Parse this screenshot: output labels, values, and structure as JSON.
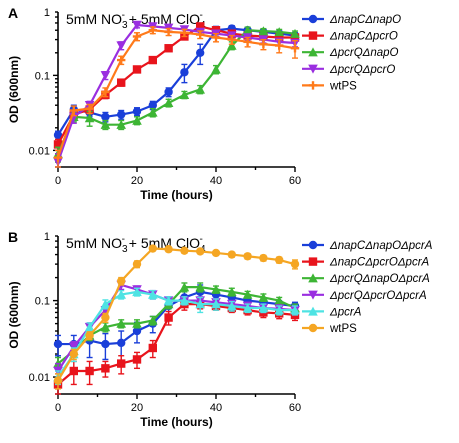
{
  "chart_data": [
    {
      "type": "line",
      "panel_label": "A",
      "annotation": "5mM NO3- + 5mM ClO4-",
      "xlabel": "Time (hours)",
      "ylabel": "OD (600nm)",
      "xlim": [
        0,
        60
      ],
      "ylim": [
        0.006,
        0.7
      ],
      "yscale": "log",
      "x_ticks": [
        "0",
        "20",
        "40",
        "60"
      ],
      "y_ticks": [
        "0.01",
        "0.1",
        "1"
      ],
      "legend_position": "right",
      "series": [
        {
          "name": "ΔnapCΔnapO",
          "color": "#1a3fd9",
          "marker": "circle",
          "x": [
            0,
            4,
            8,
            12,
            16,
            20,
            24,
            28,
            32,
            36,
            40,
            44,
            48,
            52,
            56,
            60
          ],
          "y": [
            0.016,
            0.035,
            0.032,
            0.028,
            0.03,
            0.033,
            0.04,
            0.06,
            0.11,
            0.2,
            0.4,
            0.42,
            0.4,
            0.38,
            0.36,
            0.34
          ],
          "err": [
            0.002,
            0.005,
            0.004,
            0.004,
            0.004,
            0.004,
            0.005,
            0.008,
            0.03,
            0.06,
            0.05,
            0.04,
            0.03,
            0.03,
            0.03,
            0.03
          ]
        },
        {
          "name": "ΔnapCΔpcrO",
          "color": "#e8141c",
          "marker": "square",
          "x": [
            0,
            4,
            8,
            12,
            16,
            20,
            24,
            28,
            32,
            36,
            40,
            44,
            48,
            52,
            56,
            60
          ],
          "y": [
            0.012,
            0.03,
            0.035,
            0.055,
            0.08,
            0.12,
            0.16,
            0.23,
            0.33,
            0.45,
            0.4,
            0.36,
            0.34,
            0.33,
            0.32,
            0.32
          ],
          "err": [
            0.002,
            0.004,
            0.004,
            0.006,
            0.008,
            0.01,
            0.015,
            0.02,
            0.03,
            0.04,
            0.03,
            0.03,
            0.03,
            0.03,
            0.03,
            0.03
          ]
        },
        {
          "name": "ΔpcrQΔnapO",
          "color": "#3db534",
          "marker": "triangle",
          "x": [
            0,
            4,
            8,
            12,
            16,
            20,
            24,
            28,
            32,
            36,
            40,
            44,
            48,
            52,
            56,
            60
          ],
          "y": [
            0.009,
            0.028,
            0.027,
            0.022,
            0.022,
            0.025,
            0.032,
            0.043,
            0.055,
            0.065,
            0.12,
            0.25,
            0.4,
            0.39,
            0.38,
            0.36
          ],
          "err": [
            0.002,
            0.004,
            0.006,
            0.003,
            0.003,
            0.003,
            0.004,
            0.005,
            0.006,
            0.008,
            0.015,
            0.03,
            0.04,
            0.03,
            0.03,
            0.03
          ]
        },
        {
          "name": "ΔpcrQΔpcrO",
          "color": "#9a2ee0",
          "marker": "triangle-down",
          "x": [
            0,
            4,
            8,
            12,
            16,
            20,
            24,
            28,
            32,
            36,
            40,
            44,
            48,
            52,
            56,
            60
          ],
          "y": [
            0.007,
            0.028,
            0.04,
            0.1,
            0.25,
            0.47,
            0.45,
            0.43,
            0.41,
            0.38,
            0.36,
            0.34,
            0.32,
            0.3,
            0.28,
            0.27
          ],
          "err": [
            0.002,
            0.005,
            0.005,
            0.012,
            0.03,
            0.04,
            0.04,
            0.04,
            0.04,
            0.03,
            0.03,
            0.03,
            0.03,
            0.03,
            0.03,
            0.03
          ]
        },
        {
          "name": "wtPS",
          "color": "#ff7a1a",
          "marker": "plus",
          "x": [
            0,
            4,
            8,
            12,
            16,
            20,
            24,
            28,
            32,
            36,
            40,
            44,
            48,
            52,
            56,
            60
          ],
          "y": [
            0.008,
            0.034,
            0.036,
            0.06,
            0.16,
            0.33,
            0.4,
            0.38,
            0.37,
            0.35,
            0.32,
            0.3,
            0.28,
            0.26,
            0.25,
            0.23
          ],
          "err": [
            0.002,
            0.005,
            0.005,
            0.008,
            0.02,
            0.04,
            0.04,
            0.04,
            0.04,
            0.04,
            0.04,
            0.04,
            0.04,
            0.04,
            0.05,
            0.06
          ]
        }
      ]
    },
    {
      "type": "line",
      "panel_label": "B",
      "annotation": "5mM NO3- + 5mM ClO4-",
      "xlabel": "Time (hours)",
      "ylabel": "OD (600nm)",
      "xlim": [
        0,
        60
      ],
      "ylim": [
        0.006,
        0.7
      ],
      "yscale": "log",
      "x_ticks": [
        "0",
        "20",
        "40",
        "60"
      ],
      "y_ticks": [
        "0.01",
        "0.1",
        "1"
      ],
      "legend_position": "right",
      "series": [
        {
          "name": "ΔnapCΔnapOΔpcrA",
          "color": "#1a3fd9",
          "marker": "circle",
          "x": [
            0,
            4,
            8,
            12,
            16,
            20,
            24,
            28,
            32,
            36,
            40,
            44,
            48,
            52,
            56,
            60
          ],
          "y": [
            0.027,
            0.027,
            0.03,
            0.027,
            0.028,
            0.04,
            0.05,
            0.085,
            0.11,
            0.13,
            0.12,
            0.11,
            0.1,
            0.095,
            0.09,
            0.085
          ],
          "err": [
            0.008,
            0.008,
            0.012,
            0.01,
            0.012,
            0.012,
            0.012,
            0.02,
            0.025,
            0.03,
            0.02,
            0.015,
            0.012,
            0.01,
            0.01,
            0.01
          ]
        },
        {
          "name": "ΔnapCΔpcrOΔpcrA",
          "color": "#e8141c",
          "marker": "square",
          "x": [
            0,
            4,
            8,
            12,
            16,
            20,
            24,
            28,
            32,
            36,
            40,
            44,
            48,
            52,
            56,
            60
          ],
          "y": [
            0.008,
            0.012,
            0.012,
            0.013,
            0.015,
            0.017,
            0.024,
            0.06,
            0.09,
            0.09,
            0.085,
            0.08,
            0.075,
            0.07,
            0.068,
            0.065
          ],
          "err": [
            0.003,
            0.004,
            0.004,
            0.003,
            0.004,
            0.004,
            0.006,
            0.012,
            0.015,
            0.012,
            0.01,
            0.01,
            0.01,
            0.01,
            0.01,
            0.01
          ]
        },
        {
          "name": "ΔpcrQΔnapOΔpcrA",
          "color": "#3db534",
          "marker": "triangle",
          "x": [
            0,
            4,
            8,
            12,
            16,
            20,
            24,
            28,
            32,
            36,
            40,
            44,
            48,
            52,
            56,
            60
          ],
          "y": [
            0.015,
            0.022,
            0.035,
            0.045,
            0.05,
            0.05,
            0.055,
            0.09,
            0.15,
            0.15,
            0.14,
            0.13,
            0.12,
            0.11,
            0.1,
            0.08
          ],
          "err": [
            0.003,
            0.004,
            0.005,
            0.006,
            0.006,
            0.006,
            0.007,
            0.012,
            0.02,
            0.02,
            0.015,
            0.015,
            0.012,
            0.012,
            0.01,
            0.01
          ]
        },
        {
          "name": "ΔpcrQΔpcrOΔpcrA",
          "color": "#9a2ee0",
          "marker": "triangle-down",
          "x": [
            0,
            4,
            8,
            12,
            16,
            20,
            24,
            28,
            32,
            36,
            40,
            44,
            48,
            52,
            56,
            60
          ],
          "y": [
            0.012,
            0.025,
            0.045,
            0.075,
            0.16,
            0.14,
            0.12,
            0.1,
            0.1,
            0.1,
            0.095,
            0.09,
            0.085,
            0.08,
            0.078,
            0.075
          ],
          "err": [
            0.003,
            0.004,
            0.006,
            0.01,
            0.02,
            0.015,
            0.015,
            0.012,
            0.012,
            0.012,
            0.01,
            0.01,
            0.01,
            0.01,
            0.01,
            0.01
          ]
        },
        {
          "name": "ΔpcrA",
          "color": "#4ee3e3",
          "marker": "triangle",
          "x": [
            0,
            4,
            8,
            12,
            16,
            20,
            24,
            28,
            32,
            36,
            40,
            44,
            48,
            52,
            56,
            60
          ],
          "y": [
            0.01,
            0.02,
            0.045,
            0.09,
            0.12,
            0.13,
            0.12,
            0.1,
            0.1,
            0.09,
            0.09,
            0.085,
            0.08,
            0.08,
            0.075,
            0.075
          ],
          "err": [
            0.002,
            0.004,
            0.006,
            0.012,
            0.015,
            0.015,
            0.015,
            0.012,
            0.012,
            0.02,
            0.015,
            0.012,
            0.01,
            0.01,
            0.01,
            0.01
          ]
        },
        {
          "name": "wtPS",
          "color": "#f5a623",
          "marker": "circle",
          "x": [
            0,
            4,
            8,
            12,
            16,
            20,
            24,
            28,
            32,
            36,
            40,
            44,
            48,
            52,
            56,
            60
          ],
          "y": [
            0.009,
            0.02,
            0.035,
            0.06,
            0.18,
            0.3,
            0.48,
            0.47,
            0.45,
            0.44,
            0.42,
            0.4,
            0.38,
            0.36,
            0.34,
            0.3
          ],
          "err": [
            0.002,
            0.003,
            0.004,
            0.008,
            0.02,
            0.03,
            0.03,
            0.03,
            0.03,
            0.03,
            0.03,
            0.03,
            0.03,
            0.03,
            0.03,
            0.04
          ]
        }
      ]
    }
  ]
}
